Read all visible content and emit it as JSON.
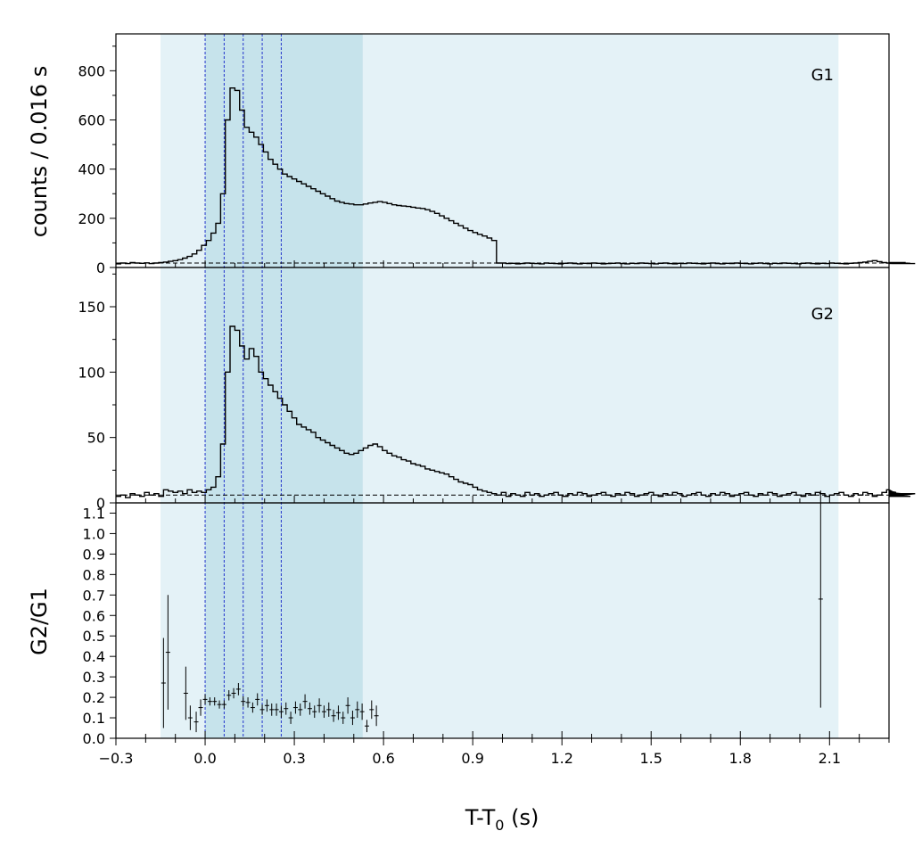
{
  "figure": {
    "ylabel_counts": "counts /  0.016 s",
    "ylabel_ratio": "G2/G1",
    "xlabel_main": "T-T",
    "xlabel_sub": "0",
    "xlabel_unit": " (s)"
  },
  "colors": {
    "light_region": "#e4f2f7",
    "dark_region": "#c6e3eb",
    "vline": "#2233cc",
    "line": "#000000"
  },
  "chart_data": [
    {
      "type": "line",
      "panel": "G1",
      "label": "G1",
      "x_start": -0.3,
      "bin_width": 0.016,
      "xlim": [
        -0.3,
        2.3
      ],
      "ylim": [
        0,
        950
      ],
      "yticks": [
        0,
        200,
        400,
        600,
        800
      ],
      "baseline": 18,
      "regions": [
        {
          "from": -0.15,
          "to": 2.13,
          "shade": "light"
        },
        {
          "from": 0.0,
          "to": 0.53,
          "shade": "dark"
        }
      ],
      "vlines": [
        0.0,
        0.064,
        0.128,
        0.192,
        0.256
      ],
      "values": [
        15,
        18,
        16,
        20,
        18,
        17,
        19,
        16,
        18,
        20,
        22,
        25,
        28,
        32,
        38,
        45,
        55,
        70,
        90,
        110,
        140,
        180,
        300,
        600,
        730,
        720,
        640,
        570,
        550,
        530,
        500,
        470,
        440,
        420,
        400,
        380,
        370,
        360,
        350,
        340,
        330,
        320,
        310,
        300,
        290,
        280,
        270,
        265,
        260,
        258,
        255,
        255,
        258,
        262,
        265,
        268,
        265,
        260,
        255,
        252,
        250,
        248,
        245,
        242,
        240,
        235,
        228,
        220,
        210,
        200,
        190,
        180,
        170,
        160,
        150,
        142,
        135,
        128,
        120,
        110,
        18,
        18,
        16,
        17,
        15,
        16,
        18,
        17,
        16,
        15,
        18,
        17,
        16,
        15,
        17,
        18,
        16,
        15,
        17,
        16,
        18,
        17,
        15,
        16,
        17,
        18,
        16,
        15,
        17,
        16,
        18,
        17,
        16,
        15,
        17,
        18,
        16,
        15,
        17,
        16,
        18,
        17,
        16,
        15,
        17,
        18,
        16,
        15,
        17,
        16,
        18,
        17,
        16,
        15,
        17,
        18,
        16,
        15,
        17,
        16,
        18,
        17,
        16,
        15,
        17,
        18,
        16,
        15,
        17,
        16,
        18,
        17,
        16,
        15,
        17,
        18,
        20,
        22,
        25,
        28,
        24,
        20,
        18,
        17,
        16,
        18,
        20,
        17,
        16
      ]
    },
    {
      "type": "line",
      "panel": "G2",
      "label": "G2",
      "x_start": -0.3,
      "bin_width": 0.016,
      "xlim": [
        -0.3,
        2.3
      ],
      "ylim": [
        0,
        180
      ],
      "yticks": [
        0,
        50,
        100,
        150
      ],
      "baseline": 6,
      "values": [
        5,
        6,
        4,
        7,
        6,
        5,
        8,
        6,
        7,
        5,
        10,
        9,
        8,
        9,
        7,
        10,
        8,
        9,
        8,
        10,
        12,
        20,
        45,
        100,
        135,
        132,
        120,
        110,
        118,
        112,
        100,
        95,
        90,
        85,
        80,
        75,
        70,
        65,
        60,
        58,
        56,
        54,
        50,
        48,
        46,
        44,
        42,
        40,
        38,
        37,
        38,
        40,
        42,
        44,
        45,
        43,
        40,
        38,
        36,
        35,
        33,
        32,
        30,
        29,
        28,
        26,
        25,
        24,
        23,
        22,
        20,
        18,
        16,
        15,
        14,
        12,
        10,
        9,
        8,
        7,
        6,
        8,
        5,
        7,
        6,
        5,
        8,
        6,
        7,
        5,
        6,
        7,
        8,
        6,
        5,
        7,
        6,
        8,
        7,
        5,
        6,
        7,
        8,
        6,
        5,
        7,
        6,
        8,
        7,
        5,
        6,
        7,
        8,
        6,
        5,
        7,
        6,
        8,
        7,
        5,
        6,
        7,
        8,
        6,
        5,
        7,
        6,
        8,
        7,
        5,
        6,
        7,
        8,
        6,
        5,
        7,
        6,
        8,
        7,
        5,
        6,
        7,
        8,
        6,
        5,
        7,
        6,
        8,
        7,
        5,
        6,
        7,
        8,
        6,
        5,
        7,
        6,
        8,
        7,
        5,
        6,
        8,
        10,
        9,
        8,
        7,
        6,
        5,
        7
      ]
    },
    {
      "type": "scatter",
      "panel": "ratio",
      "xlim": [
        -0.3,
        2.3
      ],
      "ylim": [
        0,
        1.15
      ],
      "yticks": [
        0.0,
        0.1,
        0.2,
        0.3,
        0.4,
        0.5,
        0.6,
        0.7,
        0.8,
        0.9,
        1.0,
        1.1
      ],
      "xticks": [
        -0.3,
        0.0,
        0.3,
        0.6,
        0.9,
        1.2,
        1.5,
        1.8,
        2.1
      ],
      "xtick_labels": [
        "−0.3",
        "0.0",
        "0.3",
        "0.6",
        "0.9",
        "1.2",
        "1.5",
        "1.8",
        "2.1"
      ],
      "points": [
        {
          "x": -0.14,
          "y": 0.27,
          "err": 0.22
        },
        {
          "x": -0.125,
          "y": 0.42,
          "err": 0.28
        },
        {
          "x": -0.065,
          "y": 0.22,
          "err": 0.13
        },
        {
          "x": -0.05,
          "y": 0.1,
          "err": 0.06
        },
        {
          "x": -0.03,
          "y": 0.08,
          "err": 0.05
        },
        {
          "x": -0.015,
          "y": 0.15,
          "err": 0.04
        },
        {
          "x": 0.0,
          "y": 0.19,
          "err": 0.025
        },
        {
          "x": 0.016,
          "y": 0.18,
          "err": 0.02
        },
        {
          "x": 0.032,
          "y": 0.18,
          "err": 0.02
        },
        {
          "x": 0.048,
          "y": 0.165,
          "err": 0.02
        },
        {
          "x": 0.064,
          "y": 0.165,
          "err": 0.02
        },
        {
          "x": 0.08,
          "y": 0.21,
          "err": 0.025
        },
        {
          "x": 0.096,
          "y": 0.22,
          "err": 0.025
        },
        {
          "x": 0.112,
          "y": 0.24,
          "err": 0.03
        },
        {
          "x": 0.128,
          "y": 0.18,
          "err": 0.025
        },
        {
          "x": 0.144,
          "y": 0.175,
          "err": 0.025
        },
        {
          "x": 0.16,
          "y": 0.15,
          "err": 0.025
        },
        {
          "x": 0.176,
          "y": 0.19,
          "err": 0.03
        },
        {
          "x": 0.192,
          "y": 0.14,
          "err": 0.025
        },
        {
          "x": 0.208,
          "y": 0.16,
          "err": 0.03
        },
        {
          "x": 0.224,
          "y": 0.14,
          "err": 0.03
        },
        {
          "x": 0.24,
          "y": 0.14,
          "err": 0.03
        },
        {
          "x": 0.256,
          "y": 0.13,
          "err": 0.03
        },
        {
          "x": 0.272,
          "y": 0.145,
          "err": 0.03
        },
        {
          "x": 0.288,
          "y": 0.1,
          "err": 0.03
        },
        {
          "x": 0.304,
          "y": 0.15,
          "err": 0.03
        },
        {
          "x": 0.32,
          "y": 0.14,
          "err": 0.03
        },
        {
          "x": 0.336,
          "y": 0.18,
          "err": 0.035
        },
        {
          "x": 0.352,
          "y": 0.145,
          "err": 0.03
        },
        {
          "x": 0.368,
          "y": 0.13,
          "err": 0.03
        },
        {
          "x": 0.384,
          "y": 0.16,
          "err": 0.035
        },
        {
          "x": 0.4,
          "y": 0.13,
          "err": 0.03
        },
        {
          "x": 0.416,
          "y": 0.14,
          "err": 0.035
        },
        {
          "x": 0.432,
          "y": 0.11,
          "err": 0.03
        },
        {
          "x": 0.448,
          "y": 0.125,
          "err": 0.035
        },
        {
          "x": 0.464,
          "y": 0.1,
          "err": 0.03
        },
        {
          "x": 0.48,
          "y": 0.16,
          "err": 0.04
        },
        {
          "x": 0.496,
          "y": 0.1,
          "err": 0.035
        },
        {
          "x": 0.512,
          "y": 0.14,
          "err": 0.04
        },
        {
          "x": 0.528,
          "y": 0.13,
          "err": 0.04
        },
        {
          "x": 0.544,
          "y": 0.06,
          "err": 0.03
        },
        {
          "x": 0.56,
          "y": 0.14,
          "err": 0.045
        },
        {
          "x": 0.576,
          "y": 0.11,
          "err": 0.05
        },
        {
          "x": 2.07,
          "y": 0.68,
          "err": 0.53
        }
      ]
    }
  ]
}
